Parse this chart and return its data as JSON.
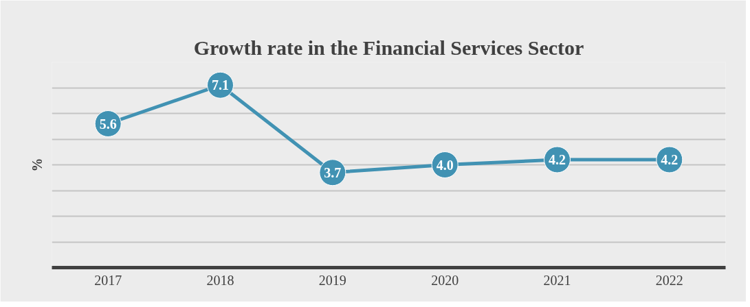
{
  "chart_data": {
    "type": "line",
    "title": "Growth rate in the Financial Services Sector",
    "ylabel": "%",
    "categories": [
      "2017",
      "2018",
      "2019",
      "2020",
      "2021",
      "2022"
    ],
    "series": [
      {
        "color": "#4192b3",
        "values": [
          5.6,
          7.1,
          3.7,
          4.0,
          4.2,
          4.2
        ],
        "value_labels": [
          "5.6",
          "7.1",
          "3.7",
          "4.0",
          "4.2",
          "4.2"
        ]
      }
    ],
    "ylim": [
      0,
      8
    ],
    "yticks": [
      {
        "value": 0,
        "label": null
      },
      {
        "value": 1,
        "label": null
      },
      {
        "value": 2,
        "label": null
      },
      {
        "value": 3,
        "label": null
      },
      {
        "value": 4,
        "label": null
      },
      {
        "value": 5,
        "label": null
      },
      {
        "value": 6,
        "label": null
      },
      {
        "value": 7,
        "label": null
      },
      {
        "value": 8,
        "label": null
      }
    ],
    "grid": "y",
    "tick_labels": "x",
    "marker": "circle",
    "line_style": "solid"
  }
}
